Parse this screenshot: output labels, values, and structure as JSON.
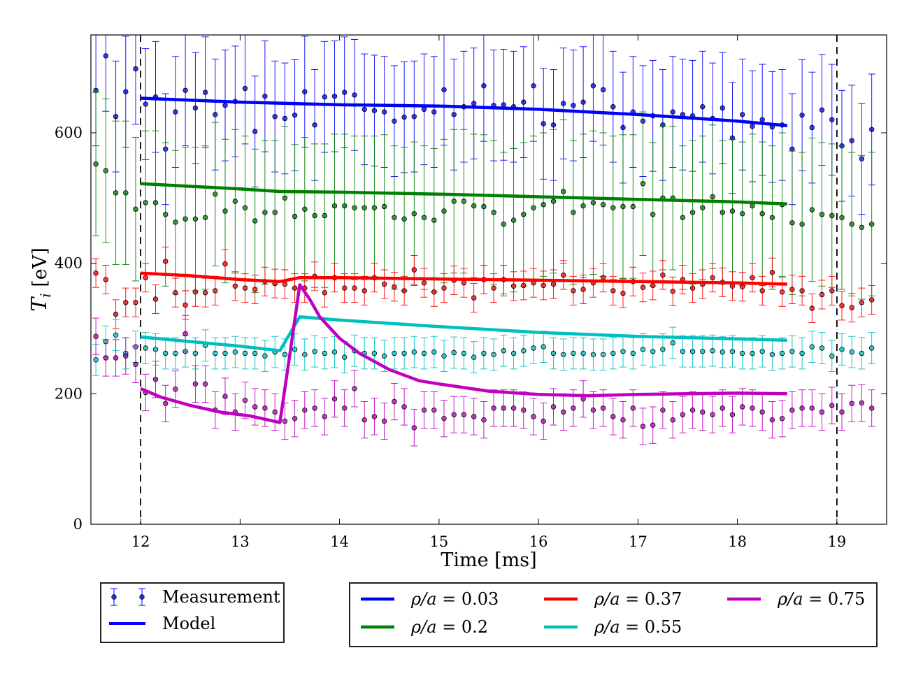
{
  "chart_data": {
    "type": "line",
    "xlabel": "Time [ms]",
    "ylabel": "T_i [eV]",
    "ylabel_main": "T",
    "ylabel_sub": "i",
    "ylabel_unit": " [eV]",
    "xlim": [
      11.5,
      19.5
    ],
    "ylim": [
      0,
      750
    ],
    "xticks": [
      12,
      13,
      14,
      15,
      16,
      17,
      18,
      19
    ],
    "yticks": [
      0,
      200,
      400,
      600
    ],
    "vlines": [
      12,
      19
    ],
    "grid": false,
    "style_legend": {
      "placement": "below-left",
      "entries": [
        {
          "label": "Measurement",
          "kind": "errorbar",
          "color": "#0000ff"
        },
        {
          "label": "Model",
          "kind": "line",
          "color": "#0000ff"
        }
      ]
    },
    "series_legend": {
      "placement": "below-right",
      "columns": 3
    },
    "series": [
      {
        "name": "ρ/a = 0.03",
        "legend_prefix": "ρ/a",
        "legend_value": " = 0.03",
        "color": "#0000ff",
        "model": {
          "x": [
            12.0,
            13.0,
            14.0,
            15.0,
            16.0,
            17.0,
            18.0,
            18.5
          ],
          "y": [
            653,
            647,
            643,
            641,
            636,
            628,
            618,
            611
          ]
        },
        "measurement": {
          "x_start": 11.55,
          "dt": 0.1,
          "err": 85,
          "y": [
            665,
            718,
            625,
            663,
            698,
            644,
            655,
            575,
            632,
            665,
            638,
            662,
            628,
            642,
            648,
            668,
            602,
            656,
            625,
            622,
            627,
            663,
            612,
            655,
            656,
            662,
            658,
            636,
            634,
            632,
            618,
            624,
            625,
            636,
            632,
            666,
            628,
            640,
            645,
            672,
            642,
            643,
            640,
            647,
            672,
            614,
            612,
            645,
            642,
            647,
            672,
            666,
            640,
            608,
            632,
            618,
            626,
            612,
            632,
            628,
            626,
            640,
            622,
            638,
            592,
            628,
            610,
            620,
            609,
            612,
            575,
            627,
            608,
            635,
            620,
            580,
            588,
            560,
            605
          ]
        }
      },
      {
        "name": "ρ/a = 0.2",
        "legend_prefix": "ρ/a",
        "legend_value": " = 0.2",
        "color": "#008000",
        "model": {
          "x": [
            12.0,
            13.0,
            13.4,
            14.0,
            15.0,
            16.0,
            17.0,
            18.0,
            18.5
          ],
          "y": [
            522,
            514,
            510,
            509,
            506,
            502,
            498,
            494,
            491
          ]
        },
        "measurement": {
          "x_start": 11.55,
          "dt": 0.1,
          "err": 110,
          "y": [
            552,
            542,
            508,
            508,
            483,
            493,
            493,
            475,
            463,
            468,
            468,
            470,
            506,
            480,
            495,
            485,
            465,
            478,
            478,
            500,
            472,
            483,
            473,
            473,
            488,
            488,
            485,
            485,
            485,
            487,
            470,
            468,
            476,
            470,
            466,
            480,
            495,
            495,
            488,
            487,
            478,
            460,
            466,
            475,
            485,
            490,
            495,
            510,
            478,
            488,
            493,
            490,
            485,
            487,
            487,
            522,
            475,
            500,
            500,
            470,
            478,
            485,
            502,
            478,
            480,
            476,
            488,
            476,
            470,
            490,
            462,
            460,
            482,
            475,
            473,
            470,
            460,
            455,
            460
          ]
        }
      },
      {
        "name": "ρ/a = 0.37",
        "legend_prefix": "ρ/a",
        "legend_value": " = 0.37",
        "color": "#ff0000",
        "model": {
          "x": [
            12.0,
            12.5,
            13.0,
            13.4,
            13.6,
            14.0,
            15.0,
            16.0,
            17.0,
            18.0,
            18.5
          ],
          "y": [
            385,
            381,
            375,
            372,
            378,
            378,
            376,
            374,
            372,
            370,
            368
          ]
        },
        "measurement": {
          "x_start": 11.55,
          "dt": 0.1,
          "err": 22,
          "y": [
            385,
            375,
            322,
            340,
            340,
            378,
            345,
            403,
            355,
            336,
            356,
            355,
            358,
            399,
            365,
            362,
            360,
            372,
            369,
            368,
            362,
            362,
            380,
            355,
            378,
            362,
            362,
            358,
            378,
            368,
            364,
            358,
            390,
            370,
            356,
            362,
            374,
            370,
            347,
            375,
            362,
            375,
            365,
            366,
            370,
            366,
            368,
            382,
            358,
            360,
            370,
            378,
            358,
            354,
            372,
            363,
            366,
            382,
            357,
            375,
            362,
            368,
            378,
            371,
            365,
            364,
            378,
            358,
            386,
            356,
            360,
            358,
            331,
            352,
            358,
            335,
            332,
            340,
            344
          ]
        }
      },
      {
        "name": "ρ/a = 0.55",
        "legend_prefix": "ρ/a",
        "legend_value": " = 0.55",
        "color": "#00bfbf",
        "model": {
          "x": [
            12.0,
            13.0,
            13.4,
            13.6,
            14.0,
            15.0,
            16.0,
            17.0,
            18.0,
            18.5
          ],
          "y": [
            287,
            273,
            266,
            318,
            313,
            303,
            294,
            288,
            284,
            282
          ]
        },
        "measurement": {
          "x_start": 11.55,
          "dt": 0.1,
          "err": 24,
          "y": [
            252,
            280,
            290,
            262,
            272,
            270,
            268,
            262,
            262,
            265,
            262,
            274,
            262,
            262,
            264,
            262,
            262,
            258,
            264,
            260,
            268,
            260,
            265,
            262,
            264,
            256,
            266,
            262,
            262,
            258,
            262,
            262,
            264,
            262,
            264,
            258,
            263,
            262,
            256,
            262,
            260,
            266,
            262,
            266,
            270,
            272,
            262,
            260,
            262,
            262,
            260,
            260,
            262,
            265,
            262,
            268,
            265,
            268,
            278,
            265,
            265,
            265,
            266,
            264,
            265,
            262,
            262,
            265,
            260,
            262,
            265,
            262,
            272,
            270,
            258,
            268,
            264,
            262,
            270
          ]
        }
      },
      {
        "name": "ρ/a = 0.75",
        "legend_prefix": "ρ/a",
        "legend_value": " = 0.75",
        "color": "#bf00bf",
        "model": {
          "x": [
            12.0,
            12.2,
            12.5,
            12.8,
            13.1,
            13.4,
            13.5,
            13.6,
            13.7,
            13.8,
            14.0,
            14.2,
            14.5,
            14.8,
            15.0,
            15.5,
            16.0,
            16.5,
            17.0,
            17.5,
            18.0,
            18.5
          ],
          "y": [
            208,
            195,
            182,
            172,
            166,
            156,
            260,
            367,
            345,
            318,
            285,
            262,
            237,
            220,
            215,
            204,
            199,
            197,
            199,
            200,
            201,
            200
          ]
        },
        "measurement": {
          "x_start": 11.55,
          "dt": 0.1,
          "err": 28,
          "y": [
            288,
            255,
            255,
            258,
            245,
            202,
            222,
            185,
            207,
            292,
            215,
            215,
            175,
            196,
            172,
            190,
            180,
            178,
            172,
            158,
            162,
            175,
            178,
            165,
            192,
            178,
            208,
            160,
            165,
            158,
            188,
            180,
            148,
            175,
            175,
            162,
            168,
            168,
            165,
            160,
            178,
            178,
            178,
            175,
            165,
            158,
            180,
            172,
            178,
            192,
            175,
            178,
            165,
            160,
            178,
            150,
            152,
            175,
            160,
            168,
            175,
            172,
            168,
            178,
            168,
            180,
            178,
            172,
            160,
            162,
            175,
            178,
            178,
            172,
            182,
            172,
            185,
            186,
            178
          ]
        }
      }
    ]
  }
}
